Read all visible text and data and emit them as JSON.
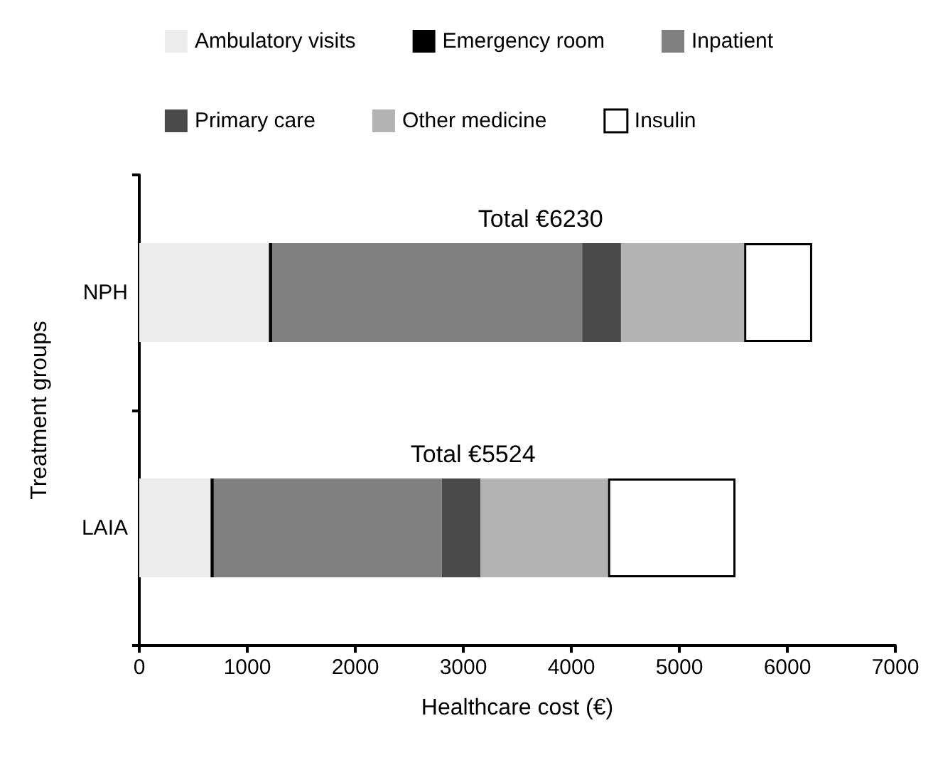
{
  "chart_data": {
    "type": "bar",
    "orientation": "horizontal",
    "stacked": true,
    "categories": [
      "NPH",
      "LAIA"
    ],
    "xlabel": "Healthcare cost (€)",
    "ylabel": "Treatment groups",
    "xlim": [
      0,
      7000
    ],
    "xticks": [
      0,
      1000,
      2000,
      3000,
      4000,
      5000,
      6000,
      7000
    ],
    "series": [
      {
        "name": "Ambulatory visits",
        "color": "#ececec",
        "values": [
          1200,
          660
        ]
      },
      {
        "name": "Emergency room",
        "color": "#000000",
        "values": [
          30,
          30
        ]
      },
      {
        "name": "Inpatient",
        "color": "#808080",
        "values": [
          2870,
          2110
        ]
      },
      {
        "name": "Primary care",
        "color": "#4a4a4a",
        "values": [
          360,
          360
        ]
      },
      {
        "name": "Other medicine",
        "color": "#b3b3b3",
        "values": [
          1140,
          1180
        ]
      },
      {
        "name": "Insulin",
        "color": "#ffffff",
        "values": [
          630,
          1180
        ]
      }
    ],
    "totals": [
      "Total €6230",
      "Total €5524"
    ],
    "legend": "top",
    "grid": false
  }
}
